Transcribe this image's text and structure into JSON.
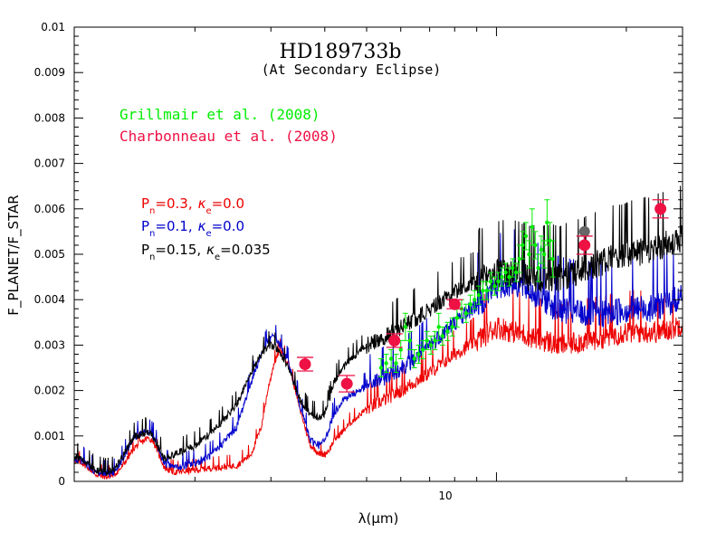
{
  "chart_data": {
    "type": "line",
    "title": "HD189733b",
    "subtitle": "(At Secondary Eclipse)",
    "xlabel": "λ(μm)",
    "ylabel": "F_PLANET/F_STAR",
    "x_scale": "log",
    "xlim": [
      1.05,
      27
    ],
    "ylim": [
      0,
      0.01
    ],
    "y_ticks": [
      "0",
      "0.001",
      "0.002",
      "0.003",
      "0.004",
      "0.005",
      "0.006",
      "0.007",
      "0.008",
      "0.009",
      "0.01"
    ],
    "x_tick_label": "10",
    "references": [
      {
        "label": "Grillmair et al. (2008)",
        "color": "#00ee00"
      },
      {
        "label": "Charbonneau et al. (2008)",
        "color": "#ee1144"
      }
    ],
    "model_legend": [
      {
        "P": "P",
        "sub": "n",
        "pval": "=0.3,",
        "kappa": "κ",
        "ksub": "e",
        "kval": "=0.0",
        "color": "#ee0000"
      },
      {
        "P": "P",
        "sub": "n",
        "pval": "=0.1,",
        "kappa": "κ",
        "ksub": "e",
        "kval": "=0.0",
        "color": "#0000cc"
      },
      {
        "P": "P",
        "sub": "n",
        "pval": "=0.15,",
        "kappa": "κ",
        "ksub": "e",
        "kval": "=0.035",
        "color": "#000000"
      }
    ],
    "series": [
      {
        "name": "Pn=0.3, κe=0.0",
        "color": "#ee0000",
        "noise": 0.00012,
        "x": [
          1.05,
          1.1,
          1.18,
          1.25,
          1.3,
          1.35,
          1.45,
          1.55,
          1.6,
          1.7,
          1.8,
          2.0,
          2.2,
          2.5,
          2.7,
          2.85,
          2.95,
          3.05,
          3.15,
          3.3,
          3.5,
          3.7,
          3.9,
          4.0,
          4.1,
          4.2,
          4.4,
          4.6,
          5.0,
          5.5,
          6.0,
          6.5,
          7.0,
          8.0,
          9.0,
          10.0,
          11.0,
          12.0,
          13.0,
          14.0,
          16.0,
          18.0,
          20.0,
          22.0,
          24.0,
          26.0,
          27.0
        ],
        "y": [
          0.00045,
          0.0004,
          0.00015,
          0.0001,
          0.00015,
          0.0003,
          0.00075,
          0.00095,
          0.0009,
          0.0003,
          0.0002,
          0.00025,
          0.0003,
          0.00035,
          0.0006,
          0.0012,
          0.002,
          0.0026,
          0.0029,
          0.0026,
          0.0016,
          0.0008,
          0.0006,
          0.0006,
          0.0007,
          0.0009,
          0.0011,
          0.0013,
          0.0016,
          0.0018,
          0.002,
          0.0022,
          0.0024,
          0.0028,
          0.0031,
          0.0034,
          0.0033,
          0.0032,
          0.0031,
          0.003,
          0.0031,
          0.0032,
          0.0033,
          0.0033,
          0.0033,
          0.0034,
          0.0035
        ]
      },
      {
        "name": "Pn=0.1, κe=0.0",
        "color": "#0000cc",
        "noise": 0.00015,
        "x": [
          1.05,
          1.1,
          1.18,
          1.25,
          1.3,
          1.35,
          1.45,
          1.55,
          1.6,
          1.7,
          1.8,
          2.0,
          2.2,
          2.5,
          2.7,
          2.85,
          2.95,
          3.05,
          3.15,
          3.3,
          3.5,
          3.7,
          3.9,
          4.0,
          4.1,
          4.2,
          4.4,
          4.6,
          5.0,
          5.5,
          6.0,
          6.5,
          7.0,
          8.0,
          9.0,
          10.0,
          11.0,
          12.0,
          13.0,
          14.0,
          16.0,
          18.0,
          20.0,
          22.0,
          24.0,
          26.0,
          27.0
        ],
        "y": [
          0.0005,
          0.00045,
          0.0002,
          0.00015,
          0.0002,
          0.00045,
          0.001,
          0.0011,
          0.001,
          0.0004,
          0.0003,
          0.0004,
          0.0006,
          0.0012,
          0.0022,
          0.0028,
          0.0031,
          0.0032,
          0.003,
          0.0026,
          0.0017,
          0.0009,
          0.0008,
          0.0009,
          0.0012,
          0.0015,
          0.0018,
          0.0019,
          0.0021,
          0.0023,
          0.0025,
          0.0027,
          0.003,
          0.0035,
          0.0039,
          0.0043,
          0.0044,
          0.0042,
          0.004,
          0.0038,
          0.0037,
          0.0037,
          0.0038,
          0.0038,
          0.0039,
          0.004,
          0.0041
        ]
      },
      {
        "name": "Pn=0.15, κe=0.035",
        "color": "#000000",
        "noise": 0.00015,
        "x": [
          1.05,
          1.1,
          1.18,
          1.25,
          1.3,
          1.35,
          1.45,
          1.55,
          1.6,
          1.7,
          1.8,
          2.0,
          2.2,
          2.5,
          2.7,
          2.85,
          2.95,
          3.05,
          3.15,
          3.3,
          3.5,
          3.7,
          3.9,
          4.0,
          4.1,
          4.2,
          4.4,
          4.6,
          5.0,
          5.5,
          6.0,
          6.5,
          7.0,
          8.0,
          9.0,
          10.0,
          11.0,
          12.0,
          13.0,
          14.0,
          16.0,
          18.0,
          20.0,
          22.0,
          24.0,
          26.0,
          27.0
        ],
        "y": [
          0.00055,
          0.0005,
          0.00025,
          0.0002,
          0.00025,
          0.0005,
          0.001,
          0.0011,
          0.001,
          0.0005,
          0.0006,
          0.0008,
          0.0011,
          0.0017,
          0.0024,
          0.0028,
          0.003,
          0.003,
          0.0028,
          0.0025,
          0.0018,
          0.0015,
          0.0014,
          0.0015,
          0.0018,
          0.0022,
          0.0025,
          0.0027,
          0.003,
          0.0032,
          0.0034,
          0.0036,
          0.0038,
          0.0042,
          0.0044,
          0.0046,
          0.0046,
          0.0045,
          0.0045,
          0.0045,
          0.0047,
          0.0049,
          0.005,
          0.0051,
          0.0052,
          0.0053,
          0.0054
        ]
      }
    ],
    "charbonneau_points": [
      {
        "x": 3.6,
        "y": 0.00258,
        "err": 0.00015
      },
      {
        "x": 4.5,
        "y": 0.00215,
        "err": 0.00018
      },
      {
        "x": 5.8,
        "y": 0.0031,
        "err": 0.00015
      },
      {
        "x": 8.0,
        "y": 0.0039,
        "err": 0.0001
      },
      {
        "x": 16.0,
        "y": 0.0052,
        "err": 0.0002
      },
      {
        "x": 24.0,
        "y": 0.006,
        "err": 0.0002
      }
    ],
    "gray_point": {
      "x": 16.0,
      "y": 0.0055
    },
    "grillmair_points": [
      {
        "x": 5.4,
        "y": 0.0025,
        "err": 0.0002
      },
      {
        "x": 5.55,
        "y": 0.0026,
        "err": 0.0002
      },
      {
        "x": 5.7,
        "y": 0.0027,
        "err": 0.0002
      },
      {
        "x": 5.85,
        "y": 0.0026,
        "err": 0.0002
      },
      {
        "x": 6.0,
        "y": 0.0029,
        "err": 0.0002
      },
      {
        "x": 6.15,
        "y": 0.0034,
        "err": 0.0003
      },
      {
        "x": 6.3,
        "y": 0.0031,
        "err": 0.0002
      },
      {
        "x": 6.45,
        "y": 0.0027,
        "err": 0.0002
      },
      {
        "x": 6.6,
        "y": 0.0028,
        "err": 0.0002
      },
      {
        "x": 6.75,
        "y": 0.0029,
        "err": 0.0002
      },
      {
        "x": 6.9,
        "y": 0.0031,
        "err": 0.0002
      },
      {
        "x": 7.05,
        "y": 0.003,
        "err": 0.0002
      },
      {
        "x": 7.2,
        "y": 0.0031,
        "err": 0.0002
      },
      {
        "x": 7.35,
        "y": 0.0034,
        "err": 0.0003
      },
      {
        "x": 7.5,
        "y": 0.0032,
        "err": 0.0002
      },
      {
        "x": 7.7,
        "y": 0.0033,
        "err": 0.0002
      },
      {
        "x": 7.9,
        "y": 0.0034,
        "err": 0.0002
      },
      {
        "x": 8.1,
        "y": 0.0036,
        "err": 0.0002
      },
      {
        "x": 8.3,
        "y": 0.0038,
        "err": 0.0002
      },
      {
        "x": 8.5,
        "y": 0.0037,
        "err": 0.0002
      },
      {
        "x": 8.7,
        "y": 0.0039,
        "err": 0.0002
      },
      {
        "x": 8.9,
        "y": 0.004,
        "err": 0.0002
      },
      {
        "x": 9.1,
        "y": 0.0041,
        "err": 0.0002
      },
      {
        "x": 9.3,
        "y": 0.0042,
        "err": 0.0002
      },
      {
        "x": 9.5,
        "y": 0.0042,
        "err": 0.0002
      },
      {
        "x": 9.7,
        "y": 0.0044,
        "err": 0.0002
      },
      {
        "x": 9.9,
        "y": 0.0043,
        "err": 0.0002
      },
      {
        "x": 10.1,
        "y": 0.0044,
        "err": 0.0002
      },
      {
        "x": 10.3,
        "y": 0.0045,
        "err": 0.0002
      },
      {
        "x": 10.5,
        "y": 0.0046,
        "err": 0.0002
      },
      {
        "x": 10.7,
        "y": 0.0045,
        "err": 0.0002
      },
      {
        "x": 10.9,
        "y": 0.0047,
        "err": 0.0002
      },
      {
        "x": 11.1,
        "y": 0.0046,
        "err": 0.0002
      },
      {
        "x": 11.3,
        "y": 0.0049,
        "err": 0.0003
      },
      {
        "x": 11.5,
        "y": 0.0052,
        "err": 0.0003
      },
      {
        "x": 11.7,
        "y": 0.0054,
        "err": 0.0003
      },
      {
        "x": 11.9,
        "y": 0.005,
        "err": 0.0003
      },
      {
        "x": 12.1,
        "y": 0.0056,
        "err": 0.0004
      },
      {
        "x": 12.3,
        "y": 0.0052,
        "err": 0.0003
      },
      {
        "x": 12.5,
        "y": 0.0047,
        "err": 0.0003
      },
      {
        "x": 12.7,
        "y": 0.0051,
        "err": 0.0003
      },
      {
        "x": 12.9,
        "y": 0.005,
        "err": 0.0003
      },
      {
        "x": 13.1,
        "y": 0.0057,
        "err": 0.0005
      },
      {
        "x": 13.3,
        "y": 0.0053,
        "err": 0.0004
      },
      {
        "x": 13.5,
        "y": 0.0049,
        "err": 0.0004
      }
    ]
  }
}
